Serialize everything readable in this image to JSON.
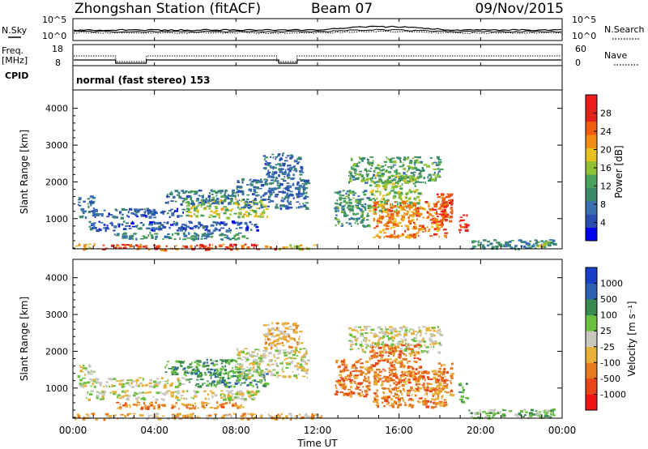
{
  "header": {
    "station": "Zhongshan Station (fitACF)",
    "beam": "Beam 07",
    "date": "09/Nov/2015"
  },
  "top_panels": {
    "nsky": {
      "label": "N.Sky",
      "ticks": [
        "10^5",
        "10^0"
      ]
    },
    "nsearch": {
      "label": "N.Search",
      "ticks": [
        "10^5",
        "10^0"
      ]
    },
    "freq": {
      "label_line1": "Freq.",
      "label_line2": "[MHz]",
      "ticks": [
        "18",
        "8"
      ]
    },
    "nave": {
      "label": "Nave",
      "ticks": [
        "60",
        "0"
      ]
    },
    "cpid": {
      "label": "CPID",
      "mode": "normal (fast stereo) 153"
    }
  },
  "chart_data": [
    {
      "type": "heatmap",
      "title": "",
      "parameter": "Power",
      "ylabel": "Slant Range [km]",
      "xlabel": "",
      "ylim": [
        180,
        4500
      ],
      "yticks": [
        "1000",
        "2000",
        "3000",
        "4000"
      ],
      "x_range_hours": [
        0,
        24
      ],
      "colorbar": {
        "label": "Power [dB]",
        "range": [
          0,
          32
        ],
        "ticks": [
          "4",
          "8",
          "12",
          "16",
          "20",
          "24",
          "28"
        ],
        "colors": [
          "#0000f0",
          "#2a4eb0",
          "#3a70b0",
          "#3a8a6a",
          "#4aa25a",
          "#8ec234",
          "#e8c020",
          "#f08c14",
          "#ee5e0e",
          "#e0241a",
          "#ee1c1c"
        ]
      },
      "regions": [
        {
          "t": [
            0.0,
            1.3
          ],
          "r": [
            180,
            330
          ],
          "level": 0.6
        },
        {
          "t": [
            1.3,
            4.5
          ],
          "r": [
            180,
            320
          ],
          "level": 0.8
        },
        {
          "t": [
            4.5,
            10.0
          ],
          "r": [
            190,
            330
          ],
          "level": 0.82
        },
        {
          "t": [
            10.0,
            12.2
          ],
          "r": [
            190,
            310
          ],
          "level": 0.58
        },
        {
          "t": [
            0.3,
            5.5
          ],
          "r": [
            1050,
            1300
          ],
          "level": 0.2
        },
        {
          "t": [
            0.2,
            1.0
          ],
          "r": [
            1350,
            1650
          ],
          "level": 0.22
        },
        {
          "t": [
            0.6,
            9.0
          ],
          "r": [
            700,
            950
          ],
          "level": 0.18
        },
        {
          "t": [
            2.0,
            8.5
          ],
          "r": [
            460,
            640
          ],
          "level": 0.32
        },
        {
          "t": [
            5.5,
            9.5
          ],
          "r": [
            1050,
            1550
          ],
          "level": 0.52
        },
        {
          "t": [
            4.5,
            8.0
          ],
          "r": [
            1400,
            1800
          ],
          "level": 0.28
        },
        {
          "t": [
            8.0,
            11.5
          ],
          "r": [
            1300,
            2100
          ],
          "level": 0.22
        },
        {
          "t": [
            9.3,
            11.2
          ],
          "r": [
            2100,
            2800
          ],
          "level": 0.22
        },
        {
          "t": [
            12.8,
            14.5
          ],
          "r": [
            800,
            1800
          ],
          "level": 0.35
        },
        {
          "t": [
            13.5,
            18.0
          ],
          "r": [
            2000,
            2700
          ],
          "level": 0.38
        },
        {
          "t": [
            14.5,
            17.0
          ],
          "r": [
            1200,
            2200
          ],
          "level": 0.48
        },
        {
          "t": [
            14.7,
            18.3
          ],
          "r": [
            500,
            1500
          ],
          "level": 0.72
        },
        {
          "t": [
            17.8,
            18.6
          ],
          "r": [
            800,
            1700
          ],
          "level": 0.85
        },
        {
          "t": [
            18.9,
            19.3
          ],
          "r": [
            650,
            1150
          ],
          "level": 0.92
        },
        {
          "t": [
            19.4,
            23.6
          ],
          "r": [
            200,
            450
          ],
          "level": 0.32
        },
        {
          "t": [
            22.7,
            23.3
          ],
          "r": [
            200,
            420
          ],
          "level": 0.52
        }
      ]
    },
    {
      "type": "heatmap",
      "title": "",
      "parameter": "Velocity",
      "ylabel": "Slant Range [km]",
      "xlabel": "Time UT",
      "ylim": [
        180,
        4500
      ],
      "yticks": [
        "1000",
        "2000",
        "3000",
        "4000"
      ],
      "x_range_hours": [
        0,
        24
      ],
      "xticks": [
        "00:00",
        "04:00",
        "08:00",
        "12:00",
        "16:00",
        "20:00",
        "00:00"
      ],
      "colorbar": {
        "label": "Velocity [m s⁻¹]",
        "ticks": [
          "1000",
          "500",
          "100",
          "25",
          "-25",
          "-100",
          "-500",
          "-1000"
        ],
        "colors": [
          "#1a3ec8",
          "#2c62b0",
          "#3a8a50",
          "#6cc040",
          "#c8c8c0",
          "#e8b038",
          "#e67a1e",
          "#e9451a",
          "#ee1414"
        ]
      },
      "regions": [
        {
          "t": [
            0.0,
            12.2
          ],
          "r": [
            180,
            330
          ],
          "level": 0.62
        },
        {
          "t": [
            0.3,
            5.5
          ],
          "r": [
            1050,
            1300
          ],
          "level": 0.5
        },
        {
          "t": [
            0.2,
            1.0
          ],
          "r": [
            1350,
            1650
          ],
          "level": 0.5
        },
        {
          "t": [
            0.6,
            9.0
          ],
          "r": [
            700,
            950
          ],
          "level": 0.52
        },
        {
          "t": [
            2.0,
            8.5
          ],
          "r": [
            460,
            640
          ],
          "level": 0.7
        },
        {
          "t": [
            5.5,
            9.5
          ],
          "r": [
            1050,
            1550
          ],
          "level": 0.3
        },
        {
          "t": [
            4.5,
            8.0
          ],
          "r": [
            1400,
            1800
          ],
          "level": 0.32
        },
        {
          "t": [
            8.0,
            11.5
          ],
          "r": [
            1300,
            2100
          ],
          "level": 0.5
        },
        {
          "t": [
            9.3,
            11.2
          ],
          "r": [
            2100,
            2800
          ],
          "level": 0.62
        },
        {
          "t": [
            12.8,
            14.5
          ],
          "r": [
            800,
            1800
          ],
          "level": 0.72
        },
        {
          "t": [
            13.5,
            18.0
          ],
          "r": [
            2000,
            2700
          ],
          "level": 0.5
        },
        {
          "t": [
            14.5,
            17.0
          ],
          "r": [
            1200,
            2200
          ],
          "level": 0.72
        },
        {
          "t": [
            14.7,
            18.3
          ],
          "r": [
            500,
            1500
          ],
          "level": 0.72
        },
        {
          "t": [
            17.8,
            18.6
          ],
          "r": [
            800,
            1700
          ],
          "level": 0.72
        },
        {
          "t": [
            18.9,
            19.3
          ],
          "r": [
            650,
            1150
          ],
          "level": 0.32
        },
        {
          "t": [
            19.4,
            23.6
          ],
          "r": [
            200,
            450
          ],
          "level": 0.4
        },
        {
          "t": [
            22.7,
            23.3
          ],
          "r": [
            200,
            420
          ],
          "level": 0.4
        }
      ]
    }
  ]
}
